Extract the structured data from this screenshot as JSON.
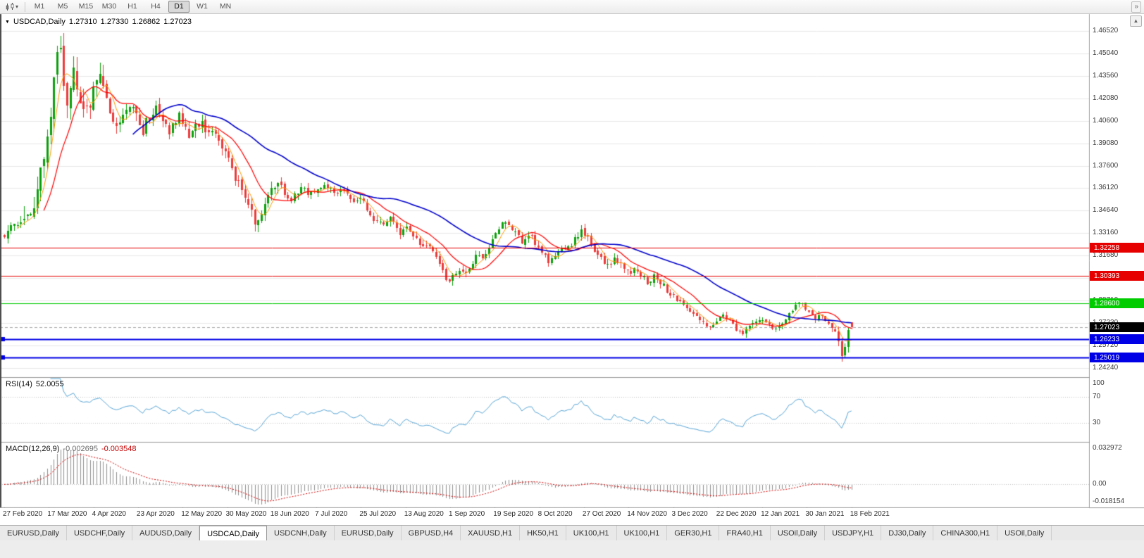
{
  "toolbar": {
    "timeframes": [
      "M1",
      "M5",
      "M15",
      "M30",
      "H1",
      "H4",
      "D1",
      "W1",
      "MN"
    ],
    "active_timeframe": "D1",
    "overflow_button": "»"
  },
  "chart": {
    "collapse_arrow": "▼",
    "title": "USDCAD,Daily",
    "ohlc": {
      "open": "1.27310",
      "high": "1.27330",
      "low": "1.26862",
      "close": "1.27023"
    },
    "price_axis_labels": [
      "1.46520",
      "1.45040",
      "1.43560",
      "1.42080",
      "1.40600",
      "1.39080",
      "1.37600",
      "1.36120",
      "1.34640",
      "1.33160",
      "1.31680",
      "1.30190",
      "1.28710",
      "1.27230",
      "1.25720",
      "1.24240"
    ],
    "hlines": [
      {
        "price": 1.32258,
        "label": "1.32258",
        "color": "#e60000",
        "thickness": 1,
        "handle": false
      },
      {
        "price": 1.30393,
        "label": "1.30393",
        "color": "#e60000",
        "thickness": 1,
        "handle": false
      },
      {
        "price": 1.286,
        "label": "1.28600",
        "color": "#00cc00",
        "thickness": 1,
        "handle": false
      },
      {
        "price": 1.26233,
        "label": "1.26233",
        "color": "#0000e6",
        "thickness": 2,
        "handle": true
      },
      {
        "price": 1.25019,
        "label": "1.25019",
        "color": "#0000e6",
        "thickness": 2,
        "handle": true
      }
    ],
    "current_price": {
      "label": "1.27023",
      "price": 1.27023,
      "tag_color": "#000000"
    },
    "colors": {
      "bull": "#0ca10c",
      "bear": "#eb3b3b",
      "grid": "#e7e7e7",
      "bid_line": "#a6a6a6"
    }
  },
  "chart_data": {
    "type": "candlestick",
    "symbol": "USDCAD",
    "timeframe": "Daily",
    "num_candles": 258,
    "visible_price_range": [
      1.2424,
      1.4652
    ],
    "last_candle": {
      "open": 1.2731,
      "high": 1.2733,
      "low": 1.26862,
      "close": 1.27023
    },
    "waypoints": [
      [
        0,
        1.3305
      ],
      [
        2,
        1.336
      ],
      [
        4,
        1.3395
      ],
      [
        6,
        1.337
      ],
      [
        8,
        1.343
      ],
      [
        10,
        1.356
      ],
      [
        12,
        1.374
      ],
      [
        13,
        1.392
      ],
      [
        14,
        1.404
      ],
      [
        15,
        1.424
      ],
      [
        16,
        1.45
      ],
      [
        17,
        1.464
      ],
      [
        18,
        1.446
      ],
      [
        19,
        1.406
      ],
      [
        20,
        1.421
      ],
      [
        21,
        1.445
      ],
      [
        22,
        1.433
      ],
      [
        23,
        1.418
      ],
      [
        24,
        1.409
      ],
      [
        26,
        1.415
      ],
      [
        28,
        1.429
      ],
      [
        30,
        1.433
      ],
      [
        32,
        1.414
      ],
      [
        34,
        1.399
      ],
      [
        36,
        1.408
      ],
      [
        38,
        1.418
      ],
      [
        40,
        1.411
      ],
      [
        42,
        1.397
      ],
      [
        44,
        1.407
      ],
      [
        46,
        1.414
      ],
      [
        48,
        1.409
      ],
      [
        50,
        1.399
      ],
      [
        52,
        1.403
      ],
      [
        54,
        1.41
      ],
      [
        56,
        1.396
      ],
      [
        58,
        1.401
      ],
      [
        60,
        1.406
      ],
      [
        62,
        1.399
      ],
      [
        64,
        1.402
      ],
      [
        66,
        1.393
      ],
      [
        68,
        1.382
      ],
      [
        70,
        1.372
      ],
      [
        72,
        1.361
      ],
      [
        74,
        1.35
      ],
      [
        76,
        1.343
      ],
      [
        77,
        1.337
      ],
      [
        79,
        1.349
      ],
      [
        81,
        1.358
      ],
      [
        83,
        1.365
      ],
      [
        85,
        1.36
      ],
      [
        87,
        1.353
      ],
      [
        89,
        1.3575
      ],
      [
        91,
        1.362
      ],
      [
        93,
        1.357
      ],
      [
        95,
        1.36
      ],
      [
        97,
        1.365
      ],
      [
        99,
        1.362
      ],
      [
        101,
        1.358
      ],
      [
        103,
        1.361
      ],
      [
        105,
        1.356
      ],
      [
        107,
        1.351
      ],
      [
        109,
        1.355
      ],
      [
        111,
        1.346
      ],
      [
        113,
        1.34
      ],
      [
        115,
        1.337
      ],
      [
        117,
        1.342
      ],
      [
        119,
        1.337
      ],
      [
        121,
        1.331
      ],
      [
        123,
        1.335
      ],
      [
        125,
        1.328
      ],
      [
        127,
        1.323
      ],
      [
        129,
        1.326
      ],
      [
        131,
        1.318
      ],
      [
        133,
        1.31
      ],
      [
        134,
        1.304
      ],
      [
        135,
        1.2985
      ],
      [
        136,
        1.303
      ],
      [
        138,
        1.309
      ],
      [
        140,
        1.305
      ],
      [
        142,
        1.312
      ],
      [
        144,
        1.318
      ],
      [
        146,
        1.316
      ],
      [
        148,
        1.325
      ],
      [
        150,
        1.333
      ],
      [
        152,
        1.34
      ],
      [
        154,
        1.337
      ],
      [
        156,
        1.331
      ],
      [
        158,
        1.326
      ],
      [
        160,
        1.33
      ],
      [
        162,
        1.323
      ],
      [
        164,
        1.317
      ],
      [
        166,
        1.313
      ],
      [
        168,
        1.319
      ],
      [
        170,
        1.324
      ],
      [
        172,
        1.322
      ],
      [
        174,
        1.329
      ],
      [
        176,
        1.334
      ],
      [
        178,
        1.326
      ],
      [
        180,
        1.319
      ],
      [
        182,
        1.314
      ],
      [
        184,
        1.31
      ],
      [
        186,
        1.315
      ],
      [
        188,
        1.309
      ],
      [
        190,
        1.304
      ],
      [
        192,
        1.309
      ],
      [
        194,
        1.303
      ],
      [
        196,
        1.299
      ],
      [
        198,
        1.304
      ],
      [
        200,
        1.298
      ],
      [
        202,
        1.293
      ],
      [
        204,
        1.289
      ],
      [
        206,
        1.285
      ],
      [
        208,
        1.281
      ],
      [
        210,
        1.277
      ],
      [
        212,
        1.273
      ],
      [
        214,
        1.269
      ],
      [
        216,
        1.274
      ],
      [
        218,
        1.279
      ],
      [
        220,
        1.275
      ],
      [
        222,
        1.27
      ],
      [
        224,
        1.265
      ],
      [
        226,
        1.269
      ],
      [
        228,
        1.273
      ],
      [
        230,
        1.277
      ],
      [
        232,
        1.273
      ],
      [
        234,
        1.269
      ],
      [
        236,
        1.272
      ],
      [
        238,
        1.277
      ],
      [
        240,
        1.282
      ],
      [
        242,
        1.286
      ],
      [
        244,
        1.28
      ],
      [
        246,
        1.276
      ],
      [
        248,
        1.279
      ],
      [
        250,
        1.274
      ],
      [
        252,
        1.269
      ],
      [
        253,
        1.263
      ],
      [
        254,
        1.255
      ],
      [
        255,
        1.247
      ],
      [
        256,
        1.266
      ],
      [
        257,
        1.27023
      ]
    ],
    "date_labels": [
      "27 Feb 2020",
      "17 Mar 2020",
      "4 Apr 2020",
      "23 Apr 2020",
      "12 May 2020",
      "30 May 2020",
      "18 Jun 2020",
      "7 Jul 2020",
      "25 Jul 2020",
      "13 Aug 2020",
      "1 Sep 2020",
      "19 Sep 2020",
      "8 Oct 2020",
      "27 Oct 2020",
      "14 Nov 2020",
      "3 Dec 2020",
      "22 Dec 2020",
      "12 Jan 2021",
      "30 Jan 2021",
      "18 Feb 2021"
    ],
    "moving_averages": [
      {
        "period": 5,
        "color": "#ff9900"
      },
      {
        "period": 13,
        "color": "#ff0000"
      },
      {
        "period": 40,
        "color": "#0000cc"
      }
    ]
  },
  "rsi": {
    "label": "RSI(14)",
    "value": "52.0055",
    "axis_labels": [
      "100",
      "70",
      "30"
    ],
    "levels": [
      70,
      30
    ],
    "line_color": "#57a5d6"
  },
  "macd": {
    "label": "MACD(12,26,9)",
    "value_main": "-0.002695",
    "value_signal": "-0.003548",
    "axis_labels": [
      "0.032972",
      "0.00",
      "-0.018154"
    ],
    "axis_max": 0.032972,
    "axis_min": -0.018154,
    "histogram_color": "#8f8f8f",
    "signal_color": "#d40000"
  },
  "tabs": {
    "items": [
      {
        "label": "EURUSD,Daily",
        "active": false
      },
      {
        "label": "USDCHF,Daily",
        "active": false
      },
      {
        "label": "AUDUSD,Daily",
        "active": false
      },
      {
        "label": "USDCAD,Daily",
        "active": true
      },
      {
        "label": "USDCNH,Daily",
        "active": false
      },
      {
        "label": "EURUSD,Daily",
        "active": false
      },
      {
        "label": "GBPUSD,H4",
        "active": false
      },
      {
        "label": "XAUUSD,H1",
        "active": false
      },
      {
        "label": "HK50,H1",
        "active": false
      },
      {
        "label": "UK100,H1",
        "active": false
      },
      {
        "label": "UK100,H1",
        "active": false
      },
      {
        "label": "GER30,H1",
        "active": false
      },
      {
        "label": "FRA40,H1",
        "active": false
      },
      {
        "label": "USOil,Daily",
        "active": false
      },
      {
        "label": "USDJPY,H1",
        "active": false
      },
      {
        "label": "DJ30,Daily",
        "active": false
      },
      {
        "label": "CHINA300,H1",
        "active": false
      },
      {
        "label": "USOil,Daily",
        "active": false
      }
    ]
  }
}
